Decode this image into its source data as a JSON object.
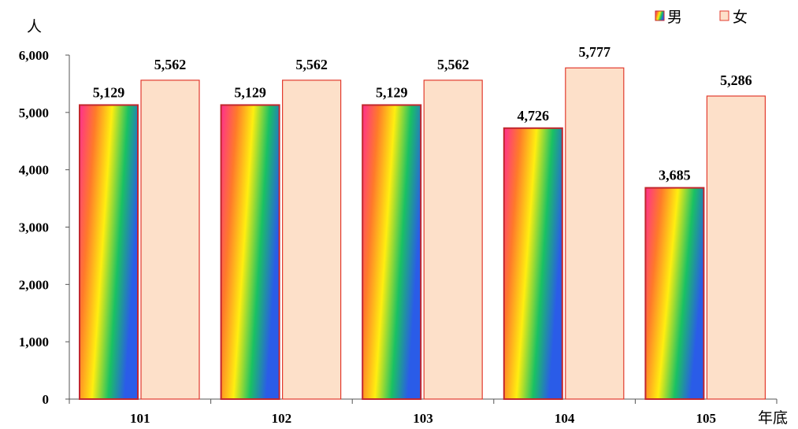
{
  "chart_data": {
    "type": "bar",
    "title": "",
    "ylabel": "人",
    "xlabel": "年底",
    "categories": [
      "101",
      "102",
      "103",
      "104",
      "105"
    ],
    "series": [
      {
        "name": "男",
        "values": [
          5129,
          5129,
          5129,
          4726,
          3685
        ]
      },
      {
        "name": "女",
        "values": [
          5562,
          5562,
          5562,
          5777,
          5286
        ]
      }
    ],
    "data_labels": {
      "男": [
        "5,129",
        "5,129",
        "5,129",
        "4,726",
        "3,685"
      ],
      "女": [
        "5,562",
        "5,562",
        "5,562",
        "5,777",
        "5,286"
      ]
    },
    "ylim": [
      0,
      6000
    ],
    "yticks": [
      0,
      1000,
      2000,
      3000,
      4000,
      5000,
      6000
    ],
    "ytick_labels": [
      "0",
      "1,000",
      "2,000",
      "3,000",
      "4,000",
      "5,000",
      "6,000"
    ],
    "grid": false,
    "legend_position": "top-right",
    "colors": {
      "male_gradient": [
        "#ff2f8f",
        "#ff7a2a",
        "#ffee10",
        "#19c163",
        "#2a5ce8"
      ],
      "female_fill": "#fde0c9",
      "female_stroke": "#e23b2e",
      "male_stroke": "#c2272d",
      "axis": "#555555"
    }
  }
}
